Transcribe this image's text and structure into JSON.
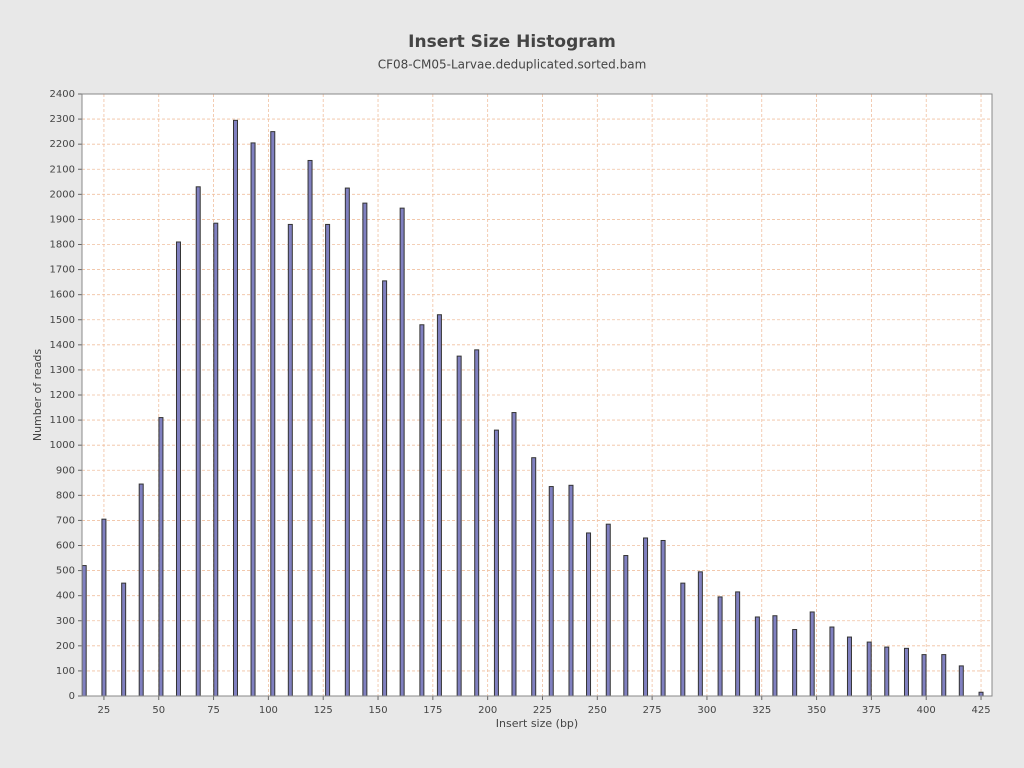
{
  "chart_data": {
    "type": "bar",
    "title": "Insert Size Histogram",
    "subtitle": "CF08-CM05-Larvae.deduplicated.sorted.bam",
    "x_label": "Insert size (bp)",
    "y_label": "Number of reads",
    "x": [
      16,
      25,
      34,
      42,
      51,
      59,
      68,
      76,
      85,
      93,
      102,
      110,
      119,
      127,
      136,
      144,
      153,
      161,
      170,
      178,
      187,
      195,
      204,
      212,
      221,
      229,
      238,
      246,
      255,
      263,
      272,
      280,
      289,
      297,
      306,
      314,
      323,
      331,
      340,
      348,
      357,
      365,
      374,
      382,
      391,
      399,
      408,
      416,
      425
    ],
    "values": [
      520,
      705,
      450,
      845,
      1110,
      1810,
      2030,
      1885,
      2295,
      2205,
      2250,
      1880,
      2135,
      1880,
      2025,
      1965,
      1655,
      1945,
      1480,
      1520,
      1355,
      1380,
      1060,
      1130,
      950,
      835,
      840,
      650,
      685,
      560,
      630,
      620,
      450,
      495,
      395,
      415,
      315,
      320,
      265,
      335,
      275,
      235,
      215,
      195,
      190,
      165,
      165,
      120,
      15
    ],
    "color": "#8080c0",
    "edge_color": "#333333",
    "xlim": [
      15,
      430
    ],
    "xticks": [
      25,
      50,
      75,
      100,
      125,
      150,
      175,
      200,
      225,
      250,
      275,
      300,
      325,
      350,
      375,
      400,
      425
    ],
    "ylim": [
      0,
      2400
    ],
    "yticks": [
      0,
      100,
      200,
      300,
      400,
      500,
      600,
      700,
      800,
      900,
      1000,
      1100,
      1200,
      1300,
      1400,
      1500,
      1600,
      1700,
      1800,
      1900,
      2000,
      2100,
      2200,
      2300,
      2400
    ],
    "grid": true,
    "grid_color": "#f0c0a0"
  }
}
